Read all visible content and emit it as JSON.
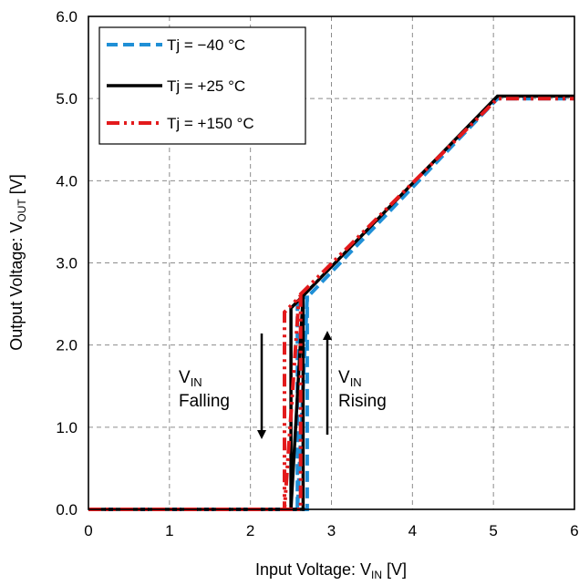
{
  "chart_data": {
    "type": "line",
    "title": "",
    "xlabel": {
      "main": "Input Voltage: V",
      "sub": "IN",
      "unit": " [V]"
    },
    "ylabel": {
      "main": "Output Voltage: V",
      "sub": "OUT",
      "unit": " [V]"
    },
    "xlim": [
      0,
      6
    ],
    "ylim": [
      0,
      6
    ],
    "x_ticks": [
      "0",
      "1",
      "2",
      "3",
      "4",
      "5",
      "6"
    ],
    "y_ticks": [
      "0.0",
      "1.0",
      "2.0",
      "3.0",
      "4.0",
      "5.0",
      "6.0"
    ],
    "grid": true,
    "legend_position": "top-left",
    "series": [
      {
        "name": "Tj = −40 °C",
        "color": "#1f8fd6",
        "style": "dashed",
        "x": [
          0,
          2.7,
          2.7,
          2.58,
          2.58,
          2.7,
          5.05,
          6
        ],
        "y": [
          0,
          0,
          2.58,
          2.58,
          0,
          2.58,
          5.0,
          5.0
        ]
      },
      {
        "name": "Tj = +25 °C",
        "color": "#000000",
        "style": "solid",
        "x": [
          0,
          2.65,
          2.65,
          2.5,
          2.5,
          2.65,
          5.05,
          6
        ],
        "y": [
          0,
          0,
          2.6,
          2.45,
          0,
          2.6,
          5.03,
          5.03
        ]
      },
      {
        "name": "Tj = +150 °C",
        "color": "#e31a1c",
        "style": "dash-dot-dot",
        "x": [
          0,
          2.62,
          2.62,
          2.42,
          2.42,
          2.6,
          5.05,
          6
        ],
        "y": [
          0,
          0,
          2.6,
          2.4,
          0,
          2.6,
          5.0,
          5.0
        ]
      }
    ],
    "annotations": [
      {
        "text_main": "V",
        "text_sub": "IN",
        "text_line2": "Falling",
        "arrow": "down"
      },
      {
        "text_main": "V",
        "text_sub": "IN",
        "text_line2": "Rising",
        "arrow": "up"
      }
    ]
  }
}
